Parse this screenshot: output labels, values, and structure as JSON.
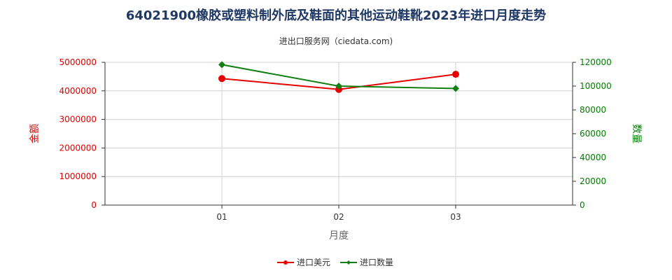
{
  "title": "64021900橡胶或塑料制外底及鞋面的其他运动鞋靴2023年进口月度走势",
  "subtitle": "进出口服务网（ciedata.com)",
  "chart_data": {
    "type": "line",
    "categories": [
      "01",
      "02",
      "03"
    ],
    "xlabel": "月度",
    "y_left": {
      "label": "金额",
      "ylim": [
        0,
        5000000
      ],
      "ticks": [
        "0",
        "1000000",
        "2000000",
        "3000000",
        "4000000",
        "5000000"
      ],
      "color": "#e00000"
    },
    "y_right": {
      "label": "数量",
      "ylim": [
        0,
        120000
      ],
      "ticks": [
        "0",
        "20000",
        "40000",
        "60000",
        "80000",
        "100000",
        "120000"
      ],
      "color": "#008000"
    },
    "series": [
      {
        "name": "进口美元",
        "axis": "left",
        "color": "#e60000",
        "values": [
          4430000,
          4050000,
          4580000
        ]
      },
      {
        "name": "进口数量",
        "axis": "right",
        "color": "#108010",
        "values": [
          118000,
          100000,
          98000
        ]
      }
    ],
    "grid": true,
    "legend_position": "bottom"
  }
}
